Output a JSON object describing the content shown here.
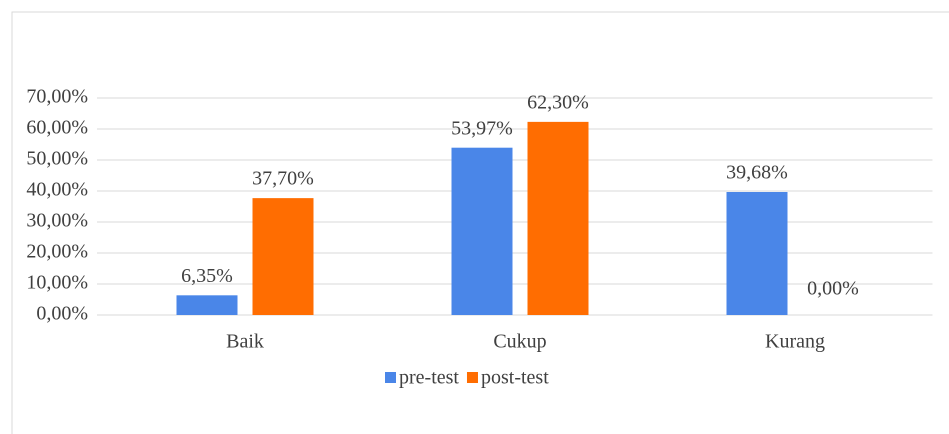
{
  "chart_data": {
    "type": "bar",
    "categories": [
      "Baik",
      "Cukup",
      "Kurang"
    ],
    "series": [
      {
        "name": "pre-test",
        "color": "#4a86e8",
        "values": [
          6.35,
          53.97,
          39.68
        ],
        "value_labels": [
          "6,35%",
          "53,97%",
          "39,68%"
        ]
      },
      {
        "name": "post-test",
        "color": "#ff6d01",
        "values": [
          37.7,
          62.3,
          0.0
        ],
        "value_labels": [
          "37,70%",
          "62,30%",
          "0,00%"
        ]
      }
    ],
    "ylim": [
      0,
      70
    ],
    "yticks": [
      {
        "value": 0,
        "label": "0,00%"
      },
      {
        "value": 10,
        "label": "10,00%"
      },
      {
        "value": 20,
        "label": "20,00%"
      },
      {
        "value": 30,
        "label": "30,00%"
      },
      {
        "value": 40,
        "label": "40,00%"
      },
      {
        "value": 50,
        "label": "50,00%"
      },
      {
        "value": 60,
        "label": "60,00%"
      },
      {
        "value": 70,
        "label": "70,00%"
      }
    ],
    "grid": true,
    "legend": "bottom"
  }
}
